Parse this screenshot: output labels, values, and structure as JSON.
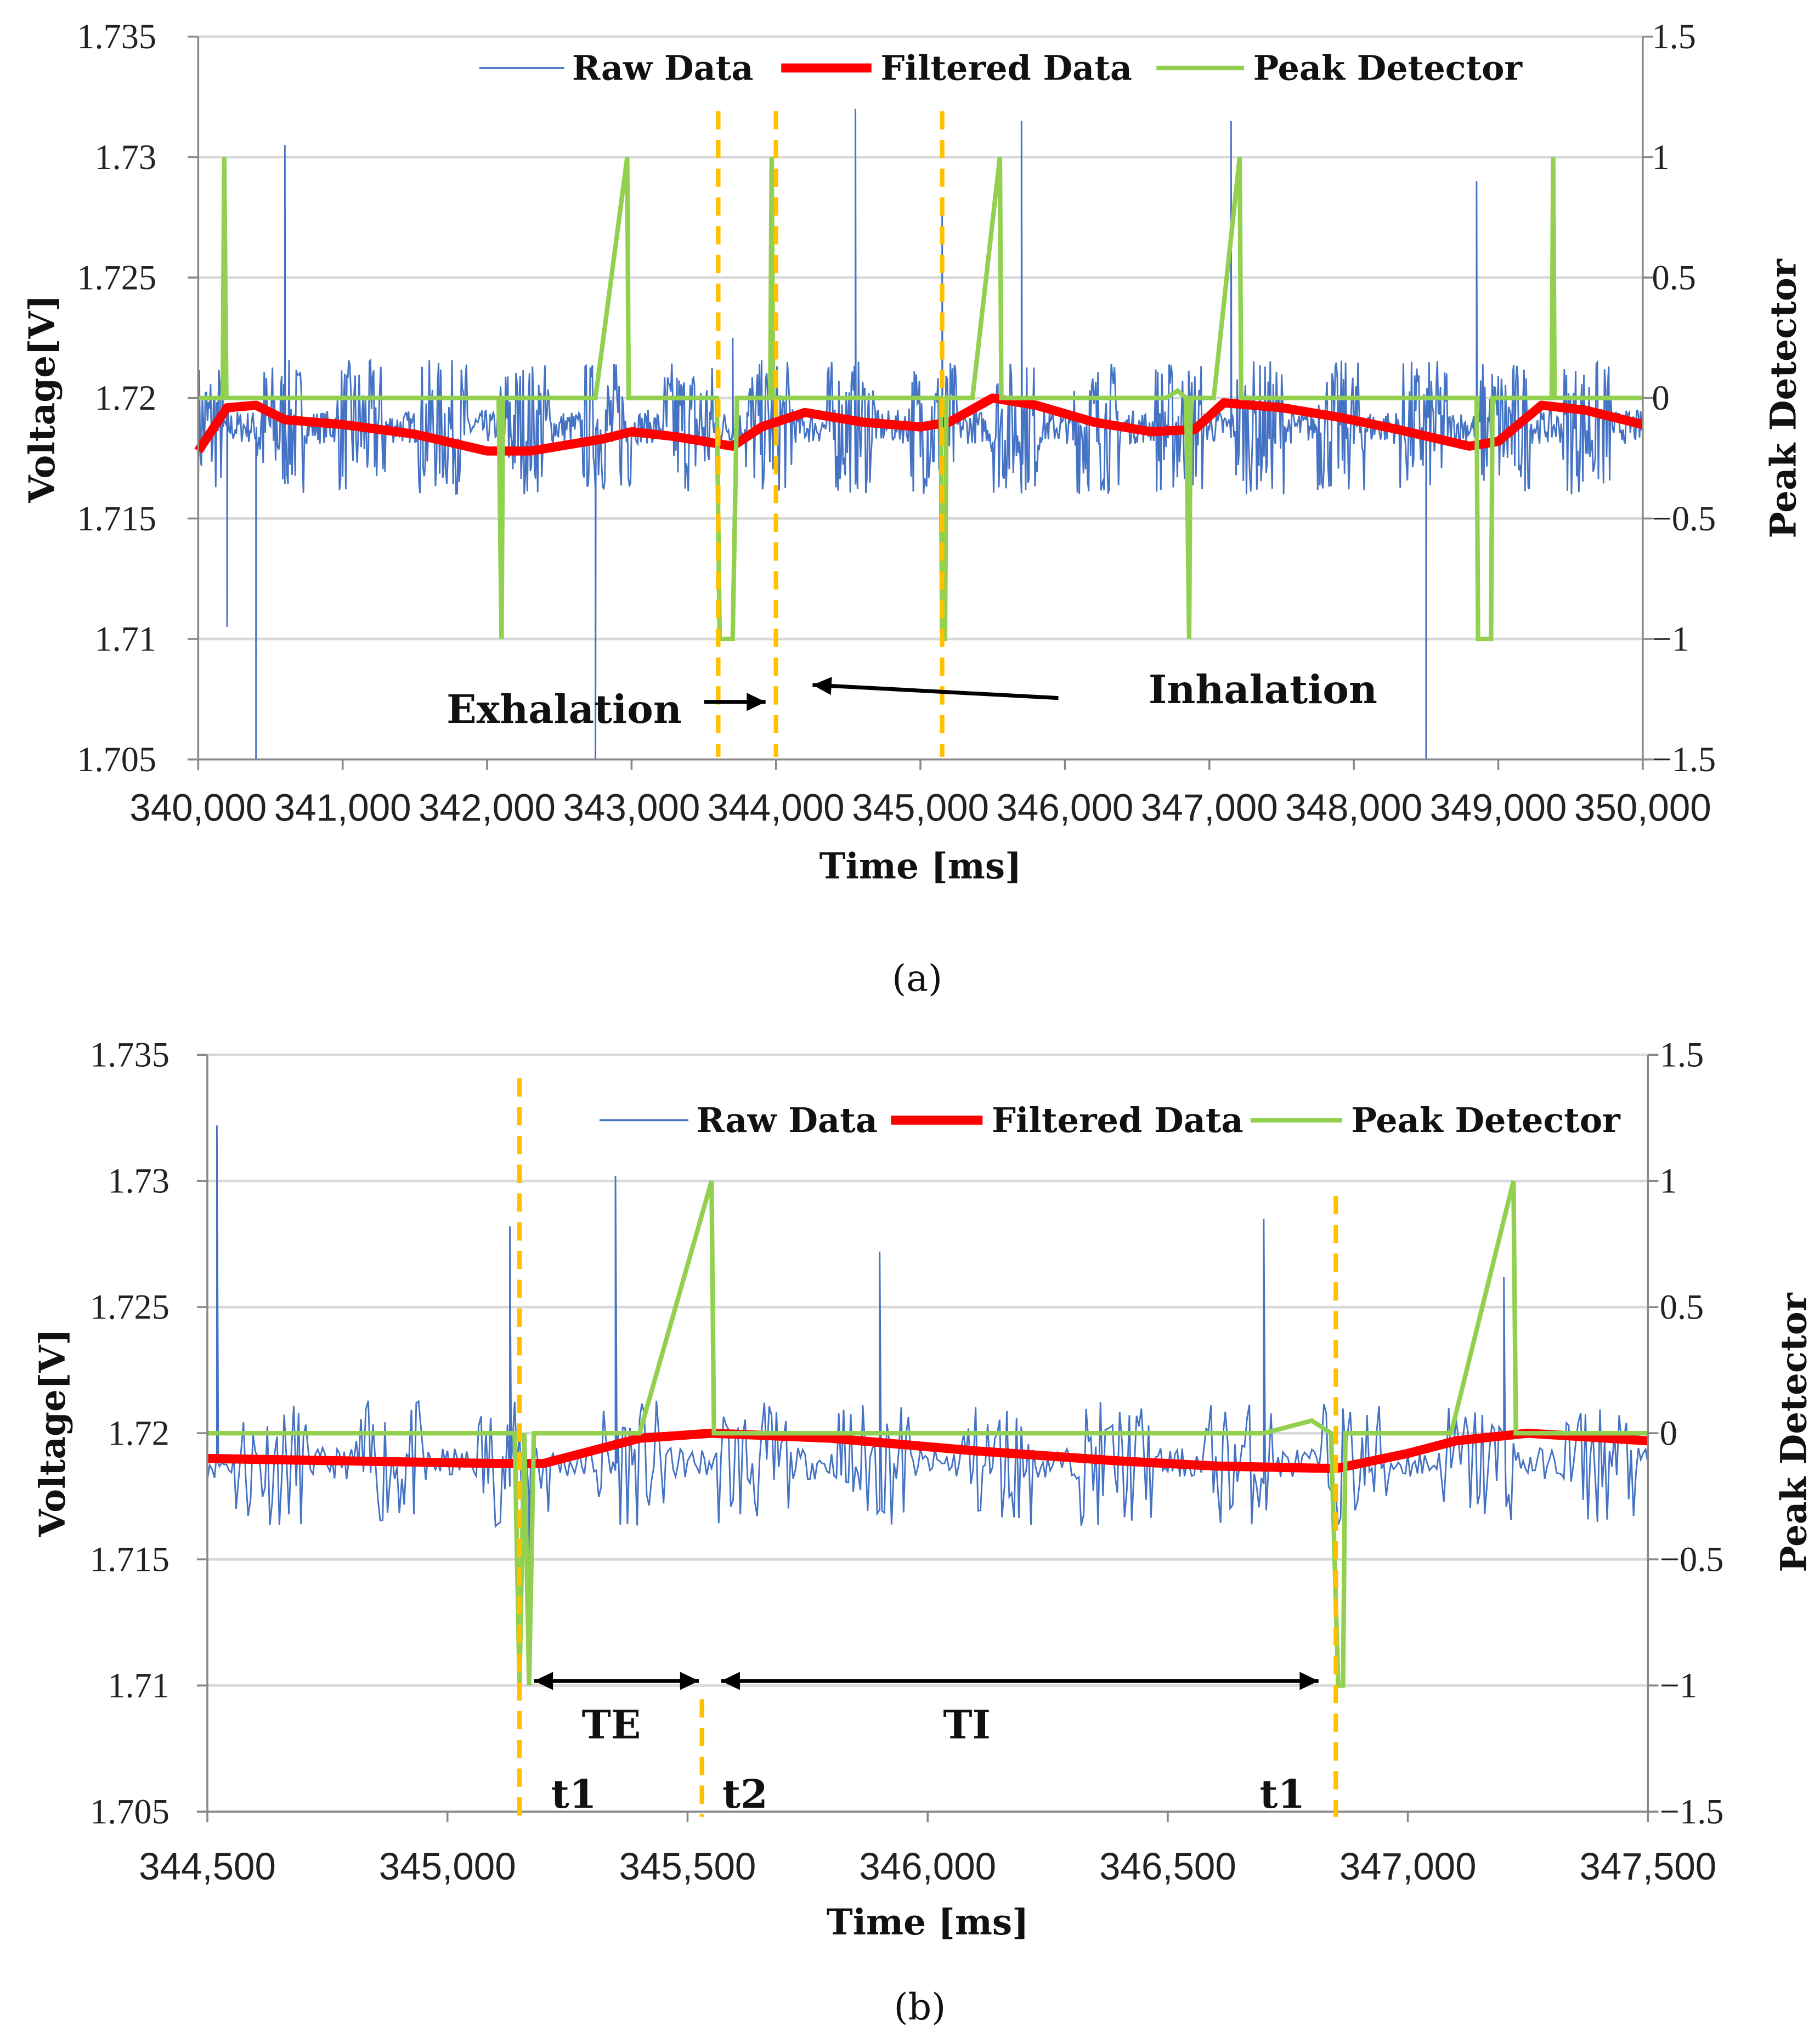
{
  "chart_data": [
    {
      "type": "line",
      "panel_caption": "(a)",
      "xlabel": "Time [ms]",
      "ylabel": "Voltage[V]",
      "y2label": "Peak Detector",
      "xlim": [
        340000,
        350000
      ],
      "ylim": [
        1.705,
        1.735
      ],
      "y2lim": [
        -1.5,
        1.5
      ],
      "x_ticks": [
        340000,
        341000,
        342000,
        343000,
        344000,
        345000,
        346000,
        347000,
        348000,
        349000,
        350000
      ],
      "x_tick_labels": [
        "340,000",
        "341,000",
        "342,000",
        "343,000",
        "344,000",
        "345,000",
        "346,000",
        "347,000",
        "348,000",
        "349,000",
        "350,000"
      ],
      "y_ticks": [
        1.705,
        1.71,
        1.715,
        1.72,
        1.725,
        1.73,
        1.735
      ],
      "y_tick_labels": [
        "1.705",
        "1.71",
        "1.715",
        "1.72",
        "1.725",
        "1.73",
        "1.735"
      ],
      "y2_ticks": [
        -1.5,
        -1,
        -0.5,
        0,
        0.5,
        1,
        1.5
      ],
      "y2_tick_labels": [
        "−1.5",
        "−1",
        "−0.5",
        "0",
        "0.5",
        "1",
        "1.5"
      ],
      "grid": true,
      "legend": [
        "Raw Data",
        "Filtered Data",
        "Peak Detector"
      ],
      "legend_placement": "top-center",
      "colors": {
        "raw": "#4472c4",
        "filtered": "#ff0000",
        "peak": "#92d050",
        "marker": "#ffc000"
      },
      "raw_data": {
        "baseline": 1.7188,
        "noise_amplitude": 0.0028,
        "seed": 7,
        "spikes": [
          [
            340170,
            1.7245
          ],
          [
            340200,
            1.7105
          ],
          [
            340400,
            1.705
          ],
          [
            340600,
            1.7305
          ],
          [
            342750,
            1.705
          ],
          [
            343700,
            1.7225
          ],
          [
            344550,
            1.732
          ],
          [
            345150,
            1.728
          ],
          [
            345700,
            1.7315
          ],
          [
            347150,
            1.7315
          ],
          [
            348500,
            1.705
          ],
          [
            348850,
            1.729
          ]
        ]
      },
      "series": [
        {
          "name": "Filtered Data",
          "axis": "left",
          "x": [
            340000,
            340200,
            340400,
            340600,
            341000,
            341500,
            342000,
            342300,
            342800,
            343000,
            343300,
            343600,
            343700,
            343900,
            344200,
            344600,
            345000,
            345200,
            345500,
            345800,
            346200,
            346600,
            346900,
            347100,
            347500,
            347900,
            348300,
            348800,
            349000,
            349300,
            349600,
            350000
          ],
          "y": [
            1.7178,
            1.7196,
            1.7197,
            1.7191,
            1.7189,
            1.7185,
            1.7178,
            1.7178,
            1.7183,
            1.7186,
            1.7184,
            1.7181,
            1.718,
            1.7188,
            1.7194,
            1.719,
            1.7188,
            1.719,
            1.72,
            1.7197,
            1.719,
            1.7186,
            1.7187,
            1.7198,
            1.7196,
            1.7192,
            1.7187,
            1.718,
            1.7182,
            1.7197,
            1.7195,
            1.7189
          ]
        },
        {
          "name": "Peak Detector",
          "axis": "right",
          "x": [
            340000,
            340170,
            340180,
            340195,
            342080,
            342100,
            342110,
            342750,
            342970,
            342980,
            343590,
            343610,
            343700,
            343730,
            343960,
            343970,
            343980,
            345140,
            345150,
            345170,
            345180,
            345360,
            345550,
            345560,
            346700,
            346780,
            346840,
            346860,
            346870,
            347030,
            347210,
            347220,
            348850,
            348860,
            348950,
            348960,
            349370,
            349380,
            349390,
            350000
          ],
          "y": [
            0,
            0,
            1,
            0,
            0,
            -1,
            0,
            0,
            1,
            0,
            0,
            -1,
            -1,
            0,
            0,
            1,
            0,
            0,
            -1,
            -1,
            0,
            0,
            1,
            0,
            0,
            0.03,
            0,
            -1,
            0,
            0,
            1,
            0,
            0,
            -1,
            -1,
            0,
            0,
            1,
            0,
            0
          ]
        }
      ],
      "vertical_markers": [
        343600,
        344000,
        345150
      ],
      "annotations": [
        {
          "text": "Exhalation",
          "arrow_to": 344000
        },
        {
          "text": "Inhalation",
          "arrow_to": 344000
        }
      ]
    },
    {
      "type": "line",
      "panel_caption": "(b)",
      "xlabel": "Time [ms]",
      "ylabel": "Voltage[V]",
      "y2label": "Peak Detector",
      "xlim": [
        344500,
        347500
      ],
      "ylim": [
        1.705,
        1.735
      ],
      "y2lim": [
        -1.5,
        1.5
      ],
      "x_ticks": [
        344500,
        345000,
        345500,
        346000,
        346500,
        347000,
        347500
      ],
      "x_tick_labels": [
        "344,500",
        "345,000",
        "345,500",
        "346,000",
        "346,500",
        "347,000",
        "347,500"
      ],
      "y_ticks": [
        1.705,
        1.71,
        1.715,
        1.72,
        1.725,
        1.73,
        1.735
      ],
      "y_tick_labels": [
        "1.705",
        "1.71",
        "1.715",
        "1.72",
        "1.725",
        "1.73",
        "1.735"
      ],
      "y2_ticks": [
        -1.5,
        -1,
        -0.5,
        0,
        0.5,
        1,
        1.5
      ],
      "y2_tick_labels": [
        "−1.5",
        "−1",
        "−0.5",
        "0",
        "0.5",
        "1",
        "1.5"
      ],
      "grid": true,
      "legend": [
        "Raw Data",
        "Filtered Data",
        "Peak Detector"
      ],
      "legend_placement": "top-right",
      "colors": {
        "raw": "#4472c4",
        "filtered": "#ff0000",
        "peak": "#92d050",
        "marker": "#ffc000"
      },
      "raw_data": {
        "baseline": 1.7188,
        "noise_amplitude": 0.0025,
        "seed": 11,
        "spikes": [
          [
            344520,
            1.7322
          ],
          [
            345130,
            1.7282
          ],
          [
            345170,
            1.7115
          ],
          [
            345350,
            1.7302
          ],
          [
            345900,
            1.7272
          ],
          [
            346700,
            1.7285
          ],
          [
            347200,
            1.7262
          ]
        ]
      },
      "series": [
        {
          "name": "Filtered Data",
          "axis": "left",
          "x": [
            344500,
            344800,
            345100,
            345200,
            345300,
            345400,
            345550,
            345800,
            346100,
            346400,
            346600,
            346850,
            347000,
            347100,
            347250,
            347500
          ],
          "y": [
            1.719,
            1.7189,
            1.7188,
            1.7188,
            1.7193,
            1.7198,
            1.72,
            1.7198,
            1.7193,
            1.7189,
            1.7187,
            1.7186,
            1.7192,
            1.7197,
            1.72,
            1.7197
          ]
        },
        {
          "name": "Peak Detector",
          "axis": "right",
          "x": [
            344500,
            345140,
            345150,
            345160,
            345170,
            345180,
            345400,
            345550,
            345555,
            346700,
            346800,
            346840,
            346855,
            346865,
            346870,
            347090,
            347220,
            347225,
            347500
          ],
          "y": [
            0,
            0,
            -1,
            0,
            -1,
            0,
            0,
            1,
            0,
            0,
            0.05,
            0,
            -1,
            -1,
            0,
            0,
            1,
            0,
            0
          ]
        }
      ],
      "vertical_markers": [
        345150,
        345530,
        346850
      ],
      "annotations": [
        {
          "text": "TE",
          "from": 345150,
          "to": 345530
        },
        {
          "text": "TI",
          "from": 345530,
          "to": 346850
        },
        {
          "text": "t1",
          "at": 345150
        },
        {
          "text": "t2",
          "at": 345530
        },
        {
          "text": "t1",
          "at": 346850
        }
      ]
    }
  ]
}
